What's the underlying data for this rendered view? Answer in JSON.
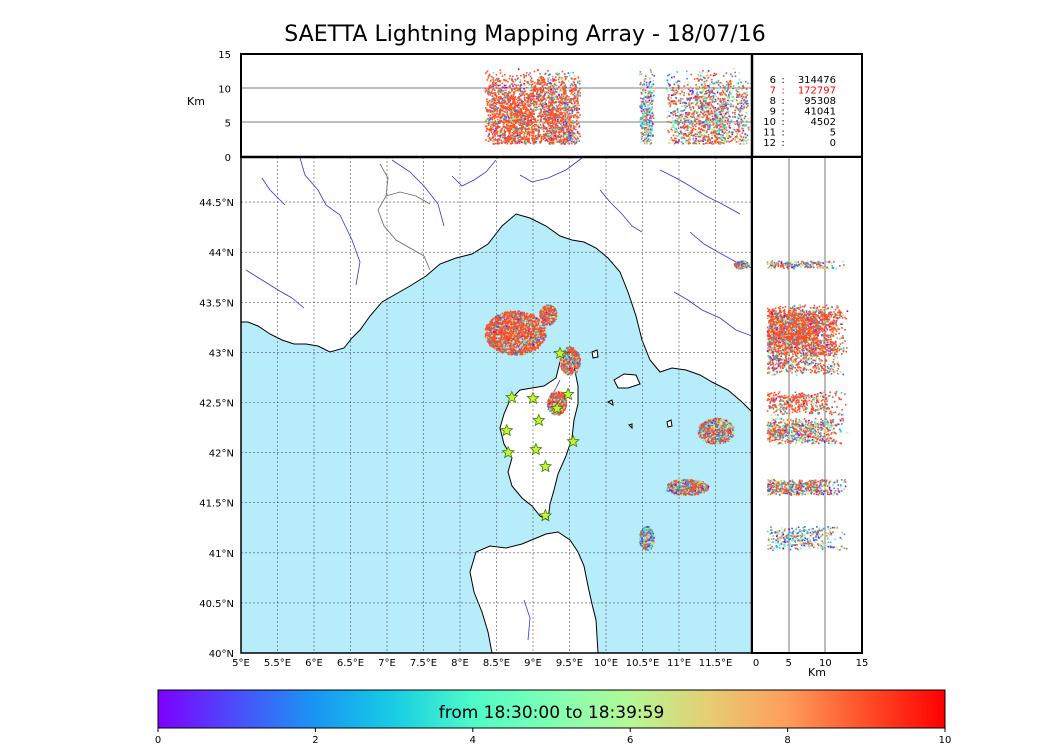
{
  "title": "SAETTA Lightning Mapping Array - 18/07/16",
  "colors": {
    "sea": "#b7ecfa",
    "land": "#ffffff",
    "coast": "#000000",
    "rivers": "#3333dd",
    "borders": "#666666",
    "grid": "#555555",
    "station_fill": "#c6f23a",
    "station_stroke": "#3b7d00"
  },
  "altitude_panel": {
    "ylabel": "Km",
    "yticks": [
      "0",
      "5",
      "10",
      "15"
    ],
    "ylim": [
      0,
      15
    ]
  },
  "side_panel": {
    "xlabel": "Km",
    "xticks": [
      "0",
      "5",
      "10",
      "15"
    ],
    "xlim": [
      0,
      15
    ]
  },
  "stations_legend": [
    {
      "label": "6",
      "count": "314476",
      "color": "#000000"
    },
    {
      "label": "7",
      "count": "172797",
      "color": "#ff0000"
    },
    {
      "label": "8",
      "count": "95308",
      "color": "#000000"
    },
    {
      "label": "9",
      "count": "41041",
      "color": "#000000"
    },
    {
      "label": "10",
      "count": "4502",
      "color": "#000000"
    },
    {
      "label": "11",
      "count": "5",
      "color": "#000000"
    },
    {
      "label": "12",
      "count": "0",
      "color": "#000000"
    }
  ],
  "map": {
    "lon_range": [
      5,
      12
    ],
    "lat_range": [
      40,
      44.95
    ],
    "lon_ticks": [
      "5°E",
      "5.5°E",
      "6°E",
      "6.5°E",
      "7°E",
      "7.5°E",
      "8°E",
      "8.5°E",
      "9°E",
      "9.5°E",
      "10°E",
      "10.5°E",
      "11°E",
      "11.5°E"
    ],
    "lat_ticks": [
      "40°N",
      "40.5°N",
      "41°N",
      "41.5°N",
      "42°N",
      "42.5°N",
      "43°N",
      "43.5°N",
      "44°N",
      "44.5°N"
    ],
    "stations": [
      {
        "lon": 9.37,
        "lat": 42.99
      },
      {
        "lon": 8.71,
        "lat": 42.55
      },
      {
        "lon": 9.0,
        "lat": 42.54
      },
      {
        "lon": 9.48,
        "lat": 42.58
      },
      {
        "lon": 9.33,
        "lat": 42.44
      },
      {
        "lon": 9.08,
        "lat": 42.32
      },
      {
        "lon": 8.64,
        "lat": 42.22
      },
      {
        "lon": 9.55,
        "lat": 42.11
      },
      {
        "lon": 8.66,
        "lat": 42.0
      },
      {
        "lon": 9.04,
        "lat": 42.03
      },
      {
        "lon": 9.17,
        "lat": 41.86
      },
      {
        "lon": 9.17,
        "lat": 41.37
      }
    ],
    "storm_regions": [
      {
        "lon": 8.75,
        "lat": 43.2,
        "rlon": 0.42,
        "rlat": 0.22,
        "tail": 0.25
      },
      {
        "lon": 9.2,
        "lat": 43.38,
        "rlon": 0.12,
        "rlat": 0.1,
        "tail": 0.3
      },
      {
        "lon": 9.5,
        "lat": 42.92,
        "rlon": 0.14,
        "rlat": 0.14,
        "tail": 0.4
      },
      {
        "lon": 9.32,
        "lat": 42.5,
        "rlon": 0.13,
        "rlat": 0.12,
        "tail": 0.3
      },
      {
        "lon": 11.5,
        "lat": 42.22,
        "rlon": 0.25,
        "rlat": 0.13,
        "tail": 0.55
      },
      {
        "lon": 11.1,
        "lat": 41.66,
        "rlon": 0.3,
        "rlat": 0.08,
        "tail": 0.5
      },
      {
        "lon": 10.55,
        "lat": 41.15,
        "rlon": 0.1,
        "rlat": 0.12,
        "tail": 0.8
      },
      {
        "lon": 11.85,
        "lat": 43.88,
        "rlon": 0.1,
        "rlat": 0.04,
        "tail": 0.6
      }
    ]
  },
  "colorbar": {
    "ticks": [
      "0",
      "2",
      "4",
      "6",
      "8",
      "10"
    ],
    "range": [
      0,
      10
    ],
    "caption": "from 18:30:00 to 18:39:59",
    "colormap": [
      "#7f00ff",
      "#4a4efb",
      "#1996f3",
      "#18cde3",
      "#4efbc8",
      "#80ffb4",
      "#b4f896",
      "#e6cd73",
      "#ff9d5b",
      "#ff4e27",
      "#ff0000"
    ]
  }
}
